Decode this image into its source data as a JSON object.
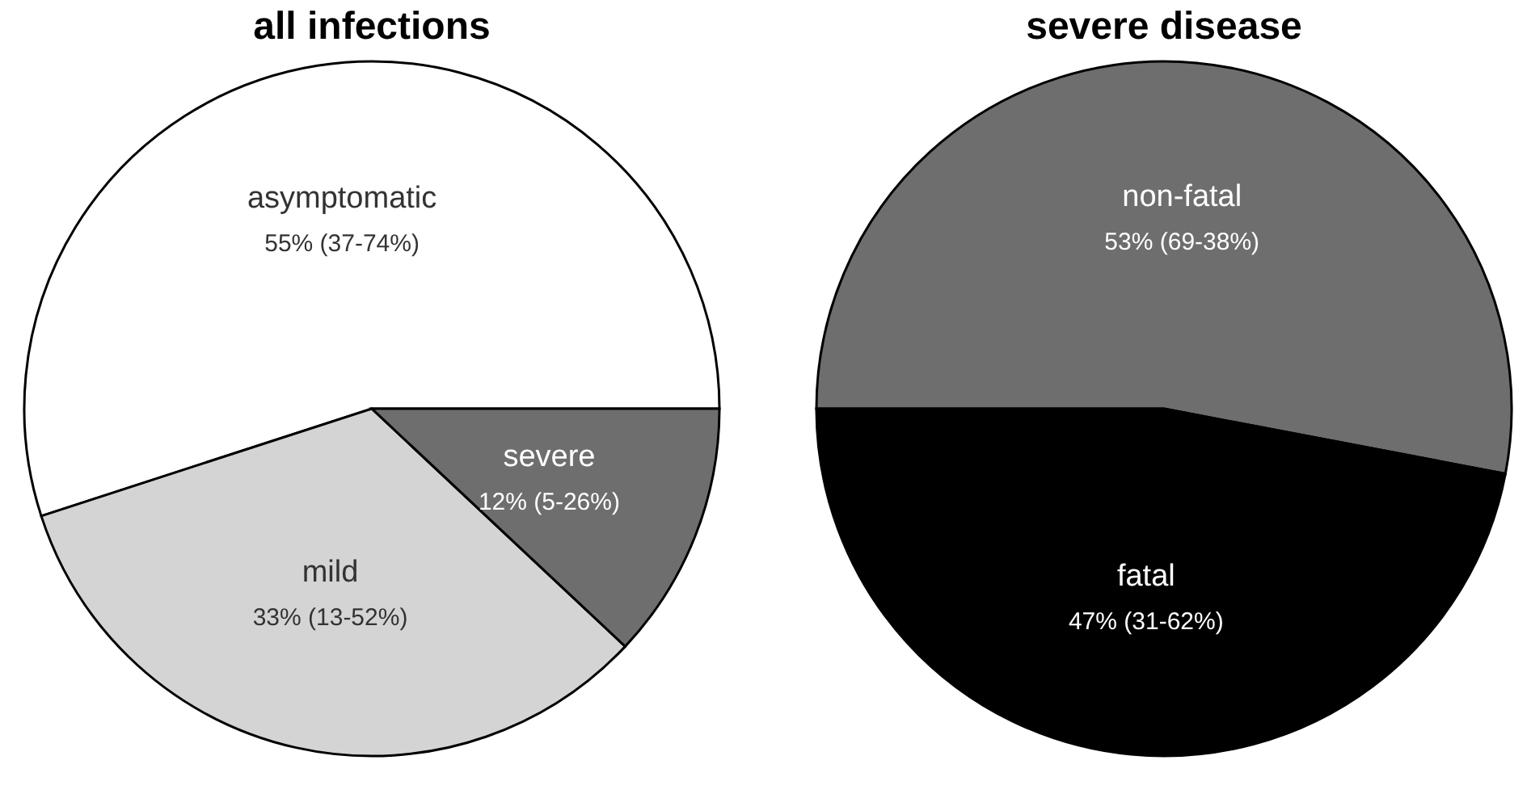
{
  "chart_data": [
    {
      "type": "pie",
      "title": "all infections",
      "categories": [
        "asymptomatic",
        "mild",
        "severe"
      ],
      "values": [
        55,
        33,
        12
      ],
      "colors": [
        "#ffffff",
        "#d4d4d4",
        "#6e6e6e"
      ],
      "value_labels": [
        "55% (37-74%)",
        "33% (13-52%)",
        "12% (5-26%)"
      ]
    },
    {
      "type": "pie",
      "title": "severe disease",
      "categories": [
        "non-fatal",
        "fatal"
      ],
      "values": [
        53,
        47
      ],
      "colors": [
        "#6e6e6e",
        "#000000"
      ],
      "value_labels": [
        "53% (69-38%)",
        "47% (31-62%)"
      ]
    }
  ]
}
